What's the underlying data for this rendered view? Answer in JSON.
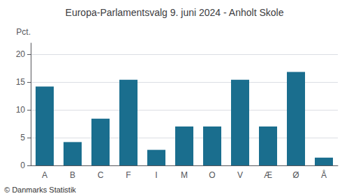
{
  "chart_data": {
    "type": "bar",
    "title": "Europa-Parlamentsvalg 9. juni 2024 - Anholt Skole",
    "ylabel": "Pct.",
    "footer": "© Danmarks Statistik",
    "categories": [
      "A",
      "B",
      "C",
      "F",
      "I",
      "M",
      "O",
      "V",
      "Æ",
      "Ø",
      "Å"
    ],
    "values": [
      14.2,
      4.2,
      8.4,
      15.4,
      2.8,
      7.0,
      7.0,
      15.4,
      7.0,
      16.8,
      1.4
    ],
    "color": "#1a6e8e",
    "ylim": [
      0,
      22
    ],
    "yticks": [
      0,
      5,
      10,
      15,
      20
    ],
    "grid": true
  }
}
